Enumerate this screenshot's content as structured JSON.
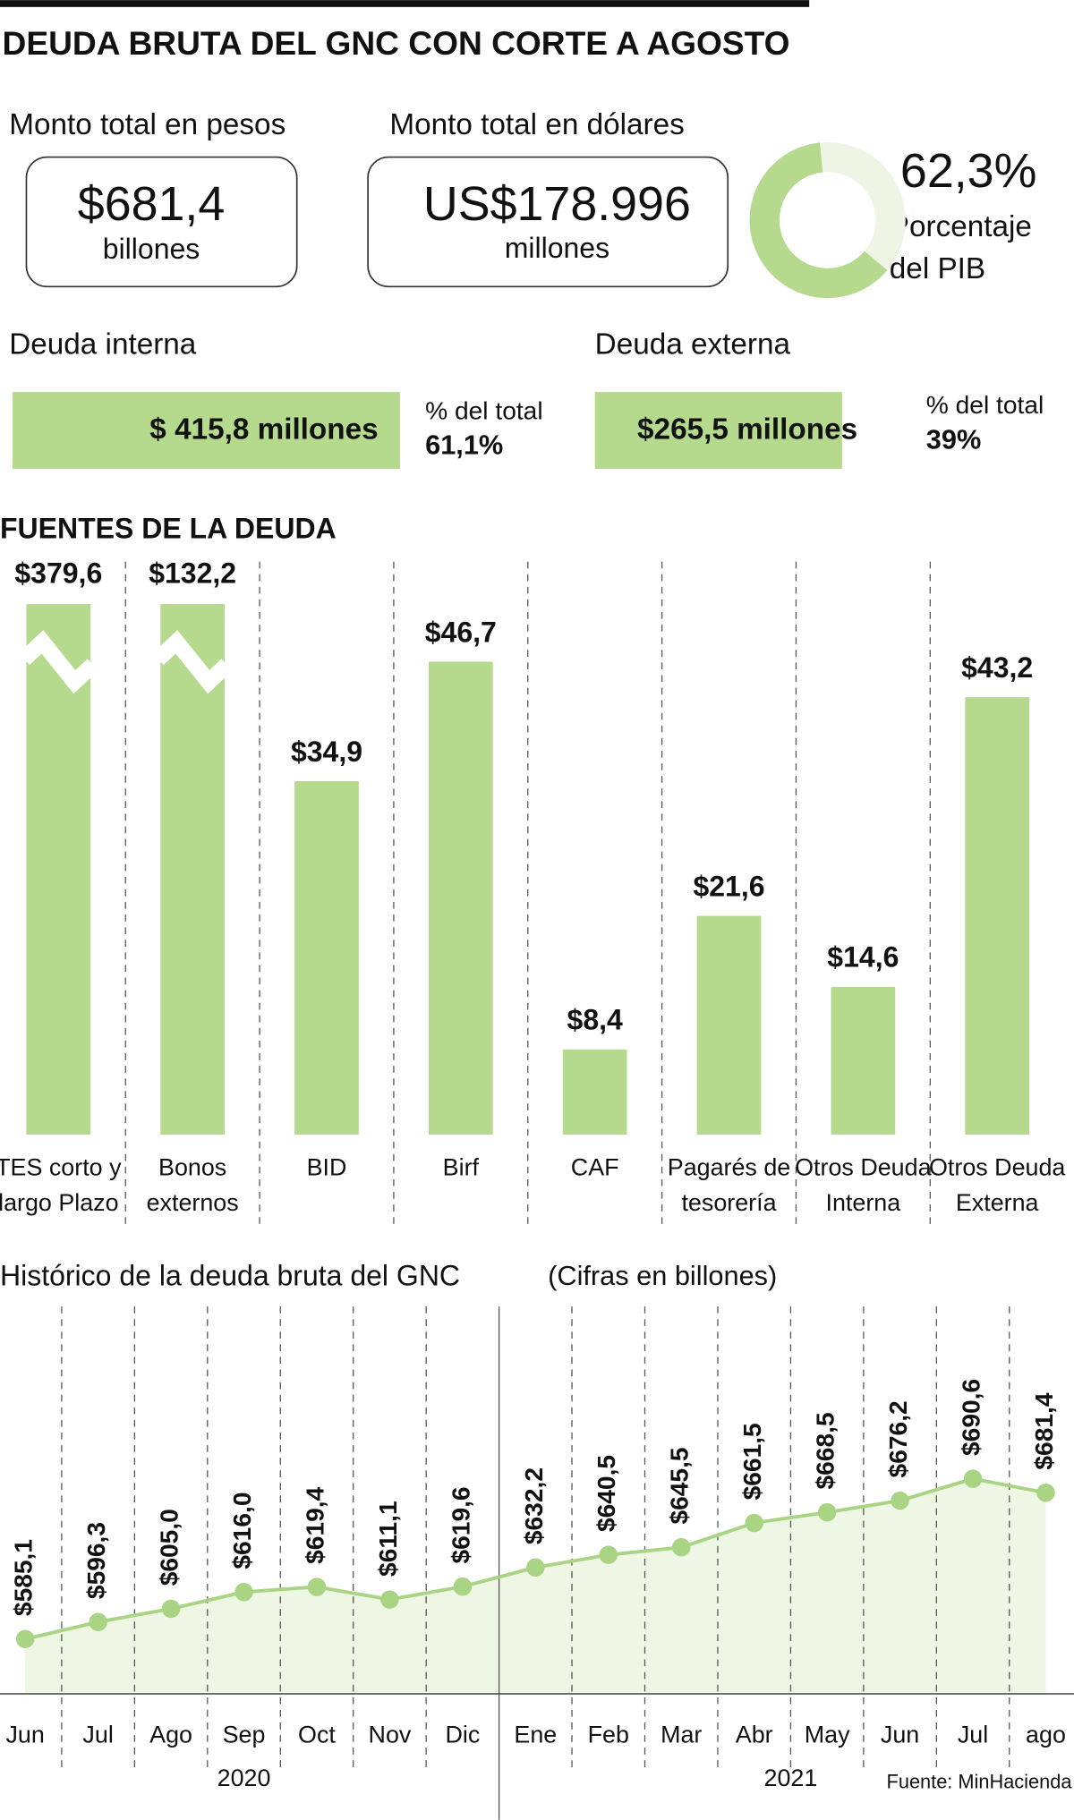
{
  "title": "DEUDA BRUTA DEL GNC CON CORTE A AGOSTO",
  "summary": {
    "pesos": {
      "label": "Monto total en pesos",
      "amount": "$681,4",
      "unit": "billones"
    },
    "dolares": {
      "label": "Monto total en dólares",
      "amount": "US$178.996",
      "unit": "millones"
    },
    "pib": {
      "value": 62.3,
      "value_label": "62,3%",
      "text": [
        "Porcentaje",
        "del PIB"
      ],
      "color": "#b5d98d",
      "rest_color": "#eef5e4"
    },
    "interna": {
      "label": "Deuda interna",
      "amount": "$ 415,8 millones",
      "share_label": "% del total",
      "share": 61.1,
      "share_text": "61,1%"
    },
    "externa": {
      "label": "Deuda externa",
      "amount": "$265,5 millones",
      "share_label": "% del total",
      "share": 39,
      "share_text": "39%"
    }
  },
  "chart_data": [
    {
      "type": "bar",
      "title": "FUENTES DE LA DEUDA",
      "color": "#b5d98d",
      "ylim": [
        0,
        52.4
      ],
      "axis_break": true,
      "categories": [
        "TES corto y\nlargo Plazo",
        "Bonos\nexternos",
        "BID",
        "Birf",
        "CAF",
        "Pagarés de\ntesorería",
        "Otros Deuda\nInterna",
        "Otros Deuda\nExterna"
      ],
      "values": [
        379.6,
        132.2,
        34.9,
        46.7,
        8.4,
        21.6,
        14.6,
        43.2
      ],
      "value_labels": [
        "$379,6",
        "$132,2",
        "$34,9",
        "$46,7",
        "$8,4",
        "$21,6",
        "$14,6",
        "$43,2"
      ]
    },
    {
      "type": "line",
      "title": "Histórico de la deuda bruta del GNC",
      "subtitle": "(Cifras en billones)",
      "color": "#a8d484",
      "area_color": "#eef6e4",
      "ylim": [
        549,
        804
      ],
      "categories": [
        "Jun",
        "Jul",
        "Ago",
        "Sep",
        "Oct",
        "Nov",
        "Dic",
        "Ene",
        "Feb",
        "Mar",
        "Abr",
        "May",
        "Jun",
        "Jul",
        "ago"
      ],
      "groups": [
        {
          "label": "2020",
          "count": 7
        },
        {
          "label": "2021",
          "count": 8
        }
      ],
      "values": [
        585.1,
        596.3,
        605.0,
        616.0,
        619.4,
        611.1,
        619.6,
        632.2,
        640.5,
        645.5,
        661.5,
        668.5,
        676.2,
        690.6,
        681.4
      ],
      "value_labels": [
        "$585,1",
        "$596,3",
        "$605,0",
        "$616,0",
        "$619,4",
        "$611,1",
        "$619,6",
        "$632,2",
        "$640,5",
        "$645,5",
        "$661,5",
        "$668,5",
        "$676,2",
        "$690,6",
        "$681,4"
      ],
      "source": "Fuente: MinHacienda"
    }
  ]
}
